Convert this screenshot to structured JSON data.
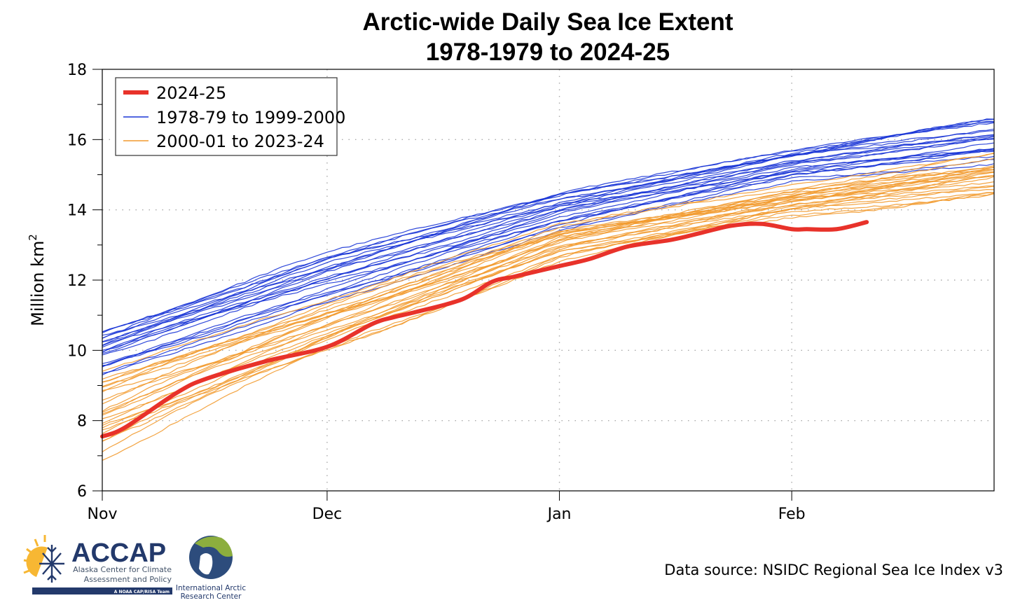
{
  "chart_data": {
    "type": "line",
    "title": "Arctic-wide Daily Sea Ice Extent",
    "subtitle": "1978-1979 to 2024-25",
    "xlabel": "",
    "ylabel": "Million km²",
    "ylabel_main": "Million km",
    "ylabel_sup": "2",
    "x_unit": "days since Nov 1",
    "xlim": [
      0,
      119
    ],
    "ylim": [
      6,
      18
    ],
    "grid": true,
    "x_ticks": [
      {
        "label": "Nov",
        "day": 0
      },
      {
        "label": "Dec",
        "day": 30
      },
      {
        "label": "Jan",
        "day": 61
      },
      {
        "label": "Feb",
        "day": 92
      }
    ],
    "y_ticks": [
      6,
      8,
      10,
      12,
      14,
      16,
      18
    ],
    "y_minor_ticks": [
      7,
      9,
      11,
      13,
      15,
      17
    ],
    "legend": {
      "placement": "top-left",
      "entries": [
        {
          "label": "2024-25",
          "color": "#e8322a",
          "style": "thick"
        },
        {
          "label": "1978-79 to 1999-2000",
          "color": "#1a35d6",
          "style": "thin"
        },
        {
          "label": "2000-01 to 2023-24",
          "color": "#f29a2e",
          "style": "thin"
        }
      ]
    },
    "series": [
      {
        "name": "2024-25",
        "color": "#e8322a",
        "x": [
          0,
          3,
          10,
          14,
          22,
          30,
          36,
          39,
          42,
          48,
          52,
          55,
          61,
          65,
          70,
          76,
          80,
          84,
          88,
          92,
          94,
          98,
          102
        ],
        "y": [
          7.55,
          7.8,
          8.8,
          9.2,
          9.7,
          10.1,
          10.75,
          10.95,
          11.1,
          11.45,
          11.95,
          12.1,
          12.4,
          12.6,
          12.95,
          13.15,
          13.35,
          13.55,
          13.6,
          13.45,
          13.45,
          13.45,
          13.65
        ]
      }
    ],
    "envelopes": [
      {
        "name": "1978-79 to 1999-2000",
        "color": "#1a35d6",
        "count": 22,
        "x": [
          0,
          30,
          61,
          92,
          119
        ],
        "low": [
          9.3,
          11.3,
          13.4,
          14.8,
          15.3
        ],
        "high": [
          10.6,
          12.8,
          14.5,
          15.7,
          16.6
        ]
      },
      {
        "name": "2000-01 to 2023-24",
        "color": "#f29a2e",
        "count": 24,
        "x": [
          0,
          30,
          61,
          92,
          119
        ],
        "low": [
          6.7,
          9.7,
          12.4,
          13.7,
          14.2
        ],
        "high": [
          9.4,
          11.5,
          13.6,
          14.7,
          15.6
        ]
      }
    ]
  },
  "footer": {
    "source": "Data source: NSIDC Regional Sea Ice Index v3",
    "logo_accap": {
      "name": "ACCAP",
      "line1": "Alaska Center for Climate",
      "line2": "Assessment and Policy",
      "tagline": "A NOAA CAP/RISA Team"
    },
    "logo_iarc": {
      "line1": "International Arctic",
      "line2": "Research Center"
    }
  }
}
